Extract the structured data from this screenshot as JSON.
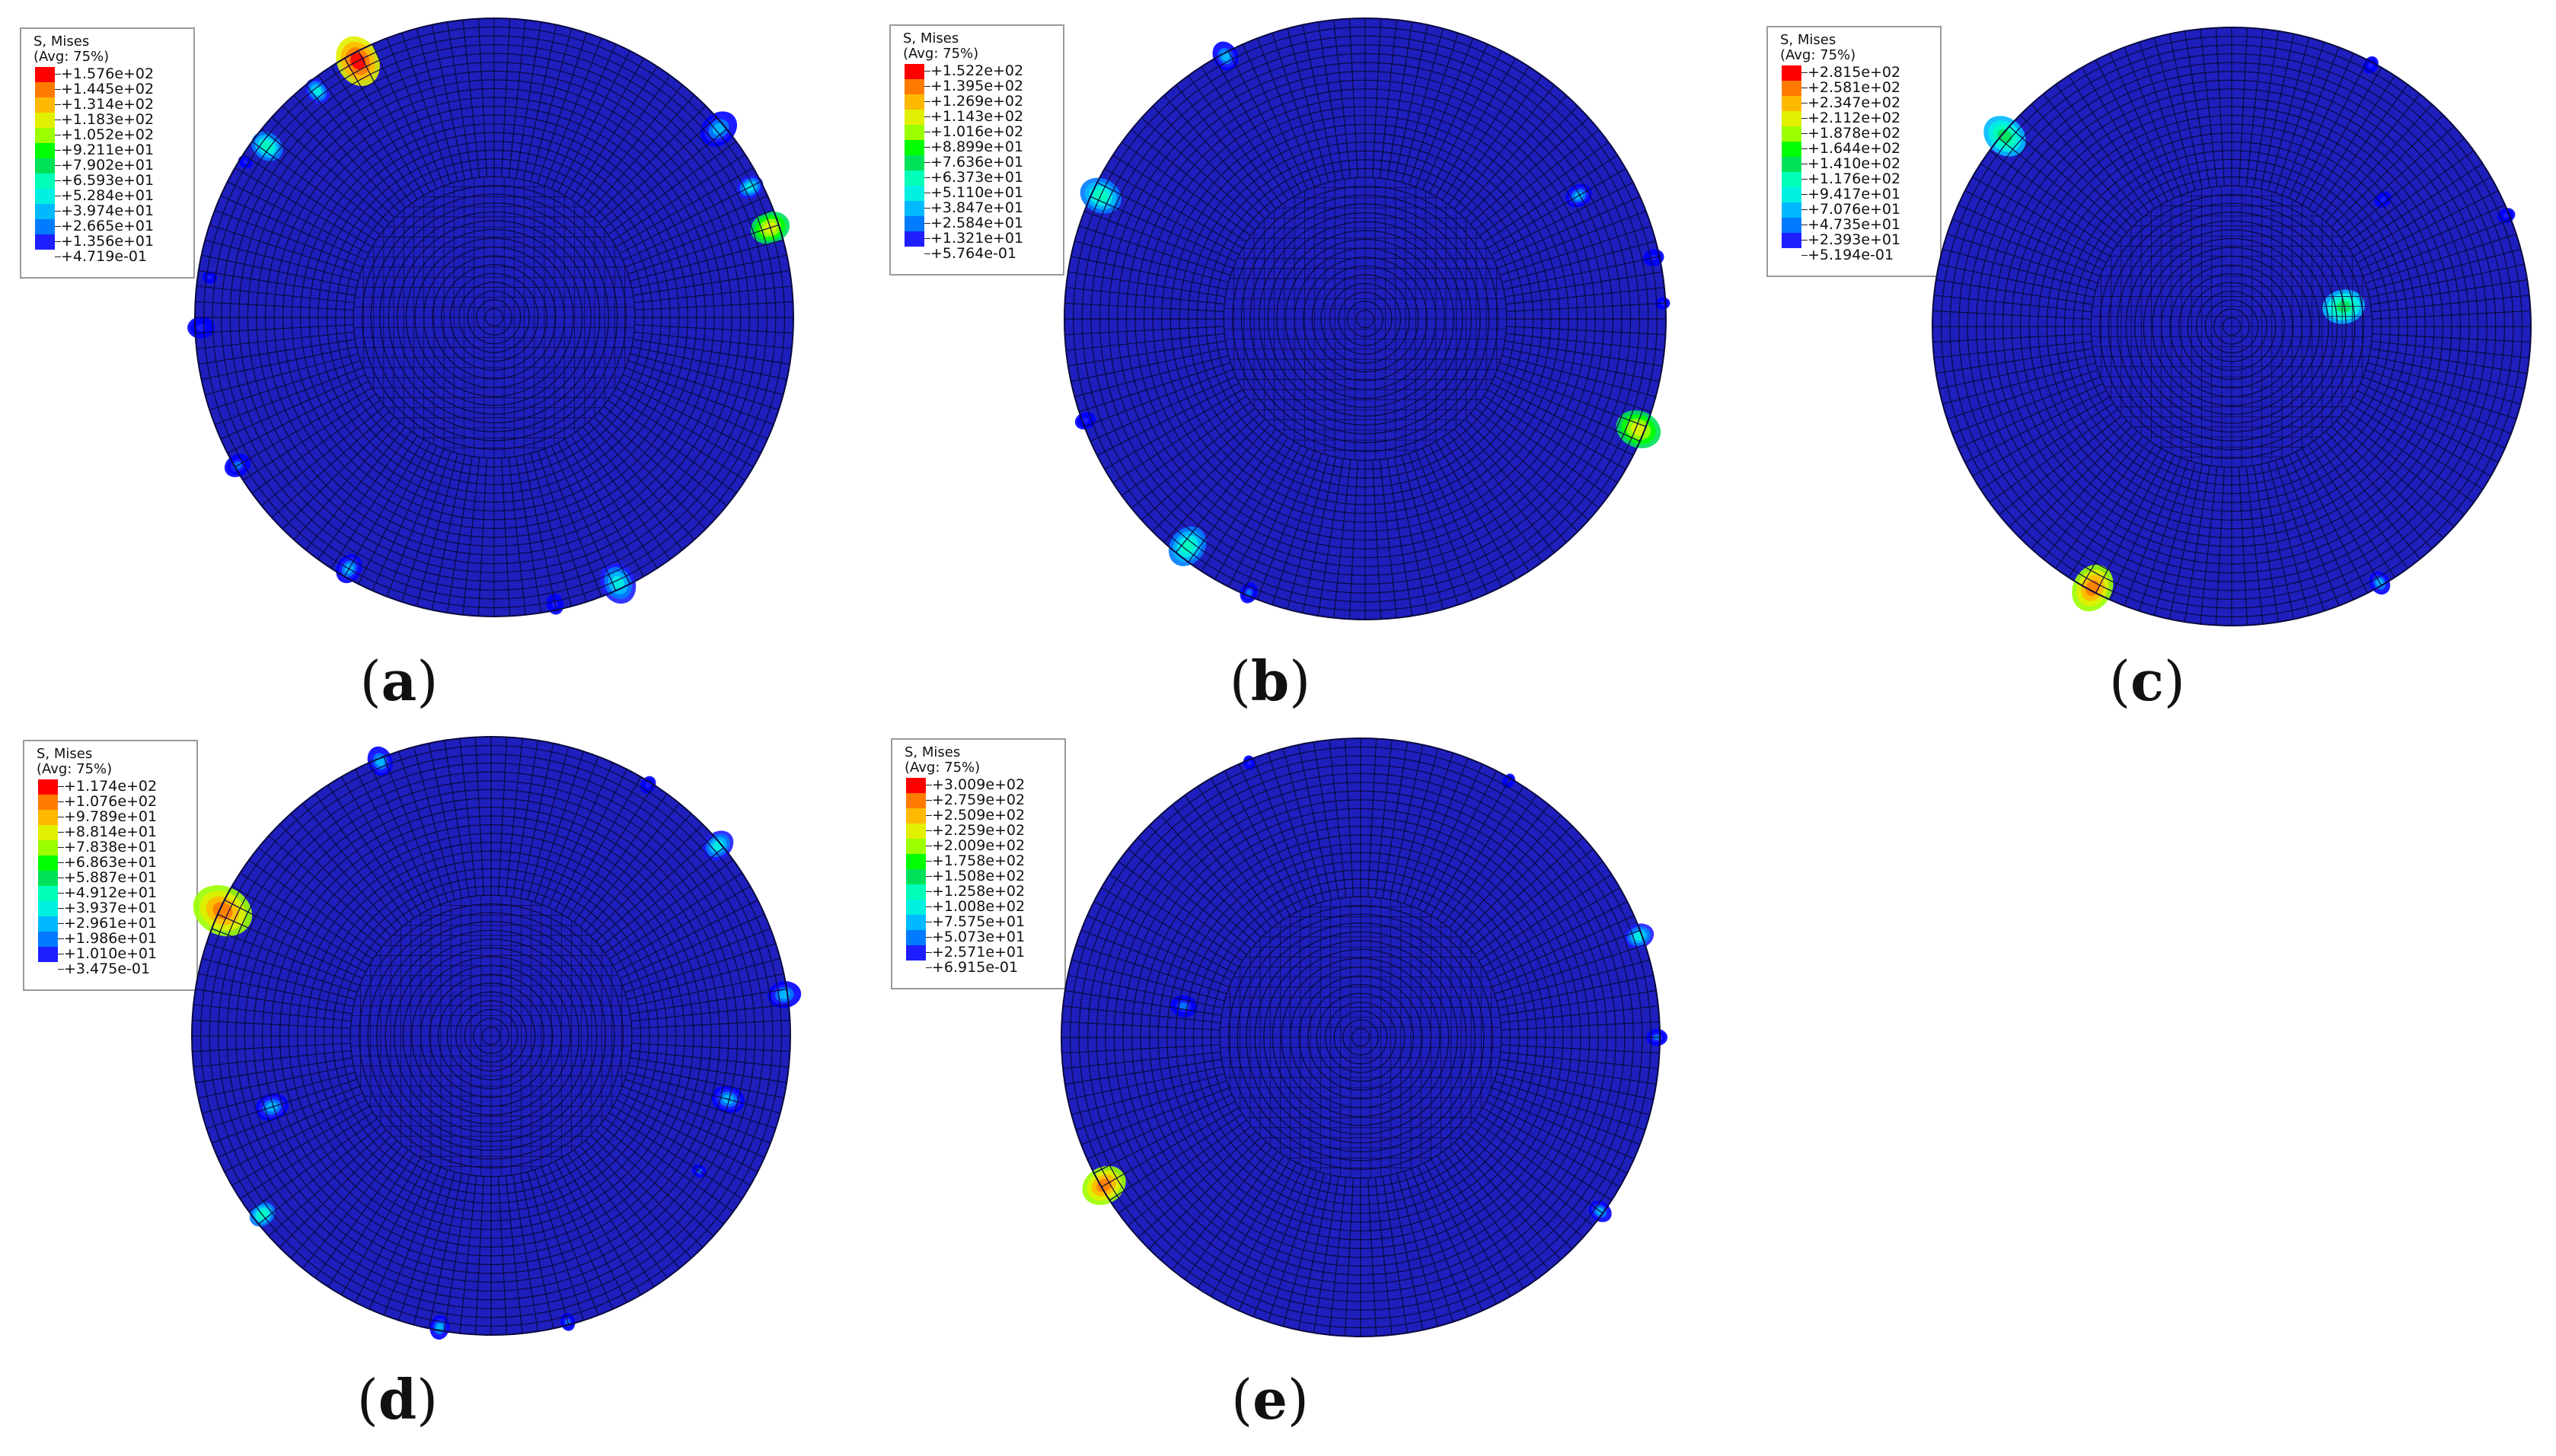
{
  "legend_title": "S, Mises",
  "legend_subtitle": "(Avg: 75%)",
  "colors": [
    "#ff0000",
    "#ff7b00",
    "#ffb900",
    "#e1f000",
    "#9cff00",
    "#00ff00",
    "#00e15a",
    "#00ffb9",
    "#00f0e1",
    "#00b9ff",
    "#007bff",
    "#1e1eff",
    "#0000ff"
  ],
  "disc_color": "#1f1fbd",
  "panels": [
    {
      "caption_left": "(",
      "caption_letter": "a",
      "caption_right": ")",
      "values": [
        "+1.576e+02",
        "+1.445e+02",
        "+1.314e+02",
        "+1.183e+02",
        "+1.052e+02",
        "+9.211e+01",
        "+7.902e+01",
        "+6.593e+01",
        "+5.284e+01",
        "+3.974e+01",
        "+2.665e+01",
        "+1.356e+01",
        "+4.719e-01"
      ]
    },
    {
      "caption_left": "(",
      "caption_letter": "b",
      "caption_right": ")",
      "values": [
        "+1.522e+02",
        "+1.395e+02",
        "+1.269e+02",
        "+1.143e+02",
        "+1.016e+02",
        "+8.899e+01",
        "+7.636e+01",
        "+6.373e+01",
        "+5.110e+01",
        "+3.847e+01",
        "+2.584e+01",
        "+1.321e+01",
        "+5.764e-01"
      ]
    },
    {
      "caption_left": "(",
      "caption_letter": "c",
      "caption_right": ")",
      "values": [
        "+2.815e+02",
        "+2.581e+02",
        "+2.347e+02",
        "+2.112e+02",
        "+1.878e+02",
        "+1.644e+02",
        "+1.410e+02",
        "+1.176e+02",
        "+9.417e+01",
        "+7.076e+01",
        "+4.735e+01",
        "+2.393e+01",
        "+5.194e-01"
      ]
    },
    {
      "caption_left": "(",
      "caption_letter": "d",
      "caption_right": ")",
      "values": [
        "+1.174e+02",
        "+1.076e+02",
        "+9.789e+01",
        "+8.814e+01",
        "+7.838e+01",
        "+6.863e+01",
        "+5.887e+01",
        "+4.912e+01",
        "+3.937e+01",
        "+2.961e+01",
        "+1.986e+01",
        "+1.010e+01",
        "+3.475e-01"
      ]
    },
    {
      "caption_left": "(",
      "caption_letter": "e",
      "caption_right": ")",
      "values": [
        "+3.009e+02",
        "+2.759e+02",
        "+2.509e+02",
        "+2.259e+02",
        "+2.009e+02",
        "+1.758e+02",
        "+1.508e+02",
        "+1.258e+02",
        "+1.008e+02",
        "+7.575e+01",
        "+5.073e+01",
        "+2.571e+01",
        "+6.915e-01"
      ]
    }
  ]
}
